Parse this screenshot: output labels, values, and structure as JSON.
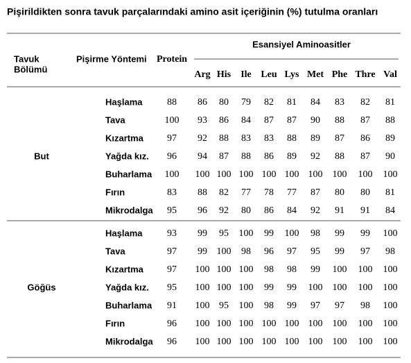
{
  "title": "Pişirildikten sonra tavuk parçalarındaki amino asit içeriğinin (%) tutulma oranları",
  "header": {
    "part": [
      "Tavuk",
      "Bölümü"
    ],
    "method": "Pişirme Yöntemi",
    "protein": "Protein",
    "group": "Esansiyel Aminoasitler",
    "amino": [
      "Arg",
      "His",
      "Ile",
      "Leu",
      "Lys",
      "Met",
      "Phe",
      "Thre",
      "Val"
    ]
  },
  "groups": [
    {
      "name": "But",
      "rows": [
        {
          "method": "Haşlama",
          "protein": 88,
          "amino": [
            86,
            80,
            79,
            82,
            81,
            84,
            83,
            82,
            81
          ]
        },
        {
          "method": "Tava",
          "protein": 100,
          "amino": [
            93,
            86,
            84,
            87,
            87,
            90,
            88,
            87,
            88
          ]
        },
        {
          "method": "Kızartma",
          "protein": 97,
          "amino": [
            92,
            88,
            83,
            83,
            88,
            89,
            87,
            86,
            89
          ]
        },
        {
          "method": "Yağda kız.",
          "protein": 96,
          "amino": [
            94,
            87,
            88,
            86,
            89,
            92,
            88,
            87,
            90
          ]
        },
        {
          "method": "Buharlama",
          "protein": 100,
          "amino": [
            100,
            100,
            100,
            100,
            100,
            100,
            100,
            100,
            100
          ]
        },
        {
          "method": "Fırın",
          "protein": 83,
          "amino": [
            88,
            82,
            77,
            78,
            77,
            87,
            80,
            80,
            81
          ]
        },
        {
          "method": "Mikrodalga",
          "protein": 95,
          "amino": [
            96,
            92,
            80,
            86,
            84,
            92,
            91,
            91,
            84
          ]
        }
      ]
    },
    {
      "name": "Göğüs",
      "rows": [
        {
          "method": "Haşlama",
          "protein": 93,
          "amino": [
            99,
            95,
            100,
            99,
            100,
            98,
            99,
            99,
            100
          ]
        },
        {
          "method": "Tava",
          "protein": 97,
          "amino": [
            99,
            100,
            98,
            96,
            97,
            95,
            99,
            97,
            98
          ]
        },
        {
          "method": "Kızartma",
          "protein": 97,
          "amino": [
            100,
            100,
            100,
            98,
            98,
            99,
            100,
            100,
            100
          ]
        },
        {
          "method": "Yağda kız.",
          "protein": 95,
          "amino": [
            100,
            100,
            100,
            99,
            99,
            100,
            100,
            100,
            100
          ]
        },
        {
          "method": "Buharlama",
          "protein": 91,
          "amino": [
            100,
            95,
            100,
            98,
            99,
            97,
            97,
            98,
            100
          ]
        },
        {
          "method": "Fırın",
          "protein": 96,
          "amino": [
            100,
            100,
            100,
            100,
            100,
            100,
            100,
            100,
            100
          ]
        },
        {
          "method": "Mikrodalga",
          "protein": 96,
          "amino": [
            100,
            100,
            100,
            100,
            100,
            100,
            100,
            100,
            100
          ]
        }
      ]
    }
  ]
}
